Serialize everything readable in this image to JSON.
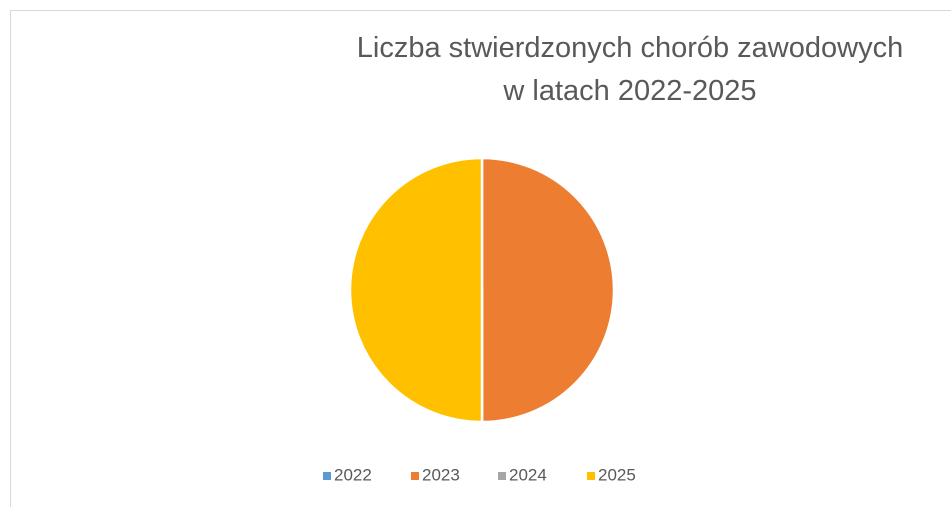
{
  "chart_data": {
    "type": "pie",
    "title": [
      "Liczba stwierdzonych chorób zawodowych",
      "w latach 2022-2025"
    ],
    "categories": [
      "2022",
      "2023",
      "2024",
      "2025"
    ],
    "values": [
      0,
      1,
      0,
      1
    ],
    "colors": [
      "#5b9bd5",
      "#ed7d31",
      "#a5a5a5",
      "#ffc000"
    ],
    "legend": "bottom"
  }
}
